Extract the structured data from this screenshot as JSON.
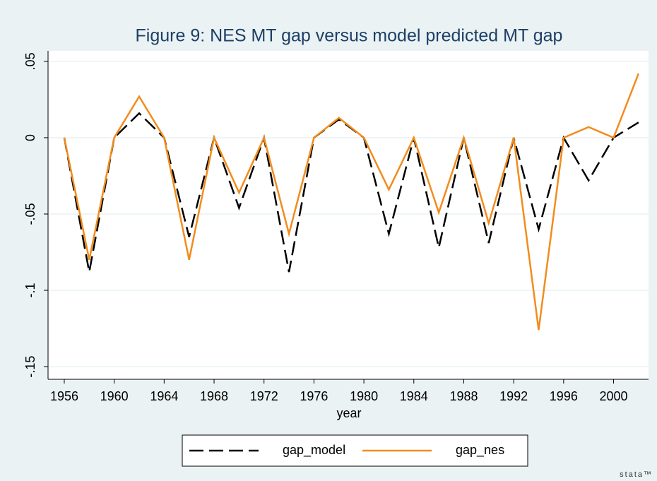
{
  "chart_data": {
    "type": "line",
    "title": "Figure 9: NES MT gap versus model predicted MT gap",
    "x_label": "year",
    "x": [
      1956,
      1958,
      1960,
      1962,
      1964,
      1966,
      1968,
      1970,
      1972,
      1974,
      1976,
      1978,
      1980,
      1982,
      1984,
      1986,
      1988,
      1990,
      1992,
      1994,
      1996,
      1998,
      2000,
      2002
    ],
    "series": [
      {
        "name": "gap_model",
        "color": "#000000",
        "dashed": true,
        "values": [
          0,
          -0.088,
          0,
          0.016,
          0,
          -0.065,
          0,
          -0.046,
          0,
          -0.088,
          0,
          0.012,
          0,
          -0.063,
          0,
          -0.072,
          0,
          -0.069,
          0,
          -0.06,
          0,
          -0.028,
          0,
          0.01
        ]
      },
      {
        "name": "gap_nes",
        "color": "#f28c1c",
        "dashed": false,
        "values": [
          0,
          -0.08,
          0,
          0.027,
          0,
          -0.08,
          0,
          -0.036,
          0,
          -0.063,
          0,
          0.013,
          0,
          -0.034,
          0,
          -0.049,
          0,
          -0.056,
          0,
          -0.126,
          0,
          0.007,
          0,
          0.042
        ]
      }
    ],
    "xlim": [
      1954.7,
      2002.8
    ],
    "xticks": [
      1956,
      1960,
      1964,
      1968,
      1972,
      1976,
      1980,
      1984,
      1988,
      1992,
      1996,
      2000
    ],
    "ylim": [
      -0.1583,
      0.0569
    ],
    "yticks": [
      {
        "value": 0.05,
        "label": ".05"
      },
      0,
      {
        "value": -0.05,
        "label": "-.05"
      },
      {
        "value": -0.1,
        "label": "-.1"
      },
      {
        "value": -0.15,
        "label": "-.15"
      }
    ],
    "grid": true,
    "legend_position": "bottom",
    "watermark": "stata™"
  }
}
